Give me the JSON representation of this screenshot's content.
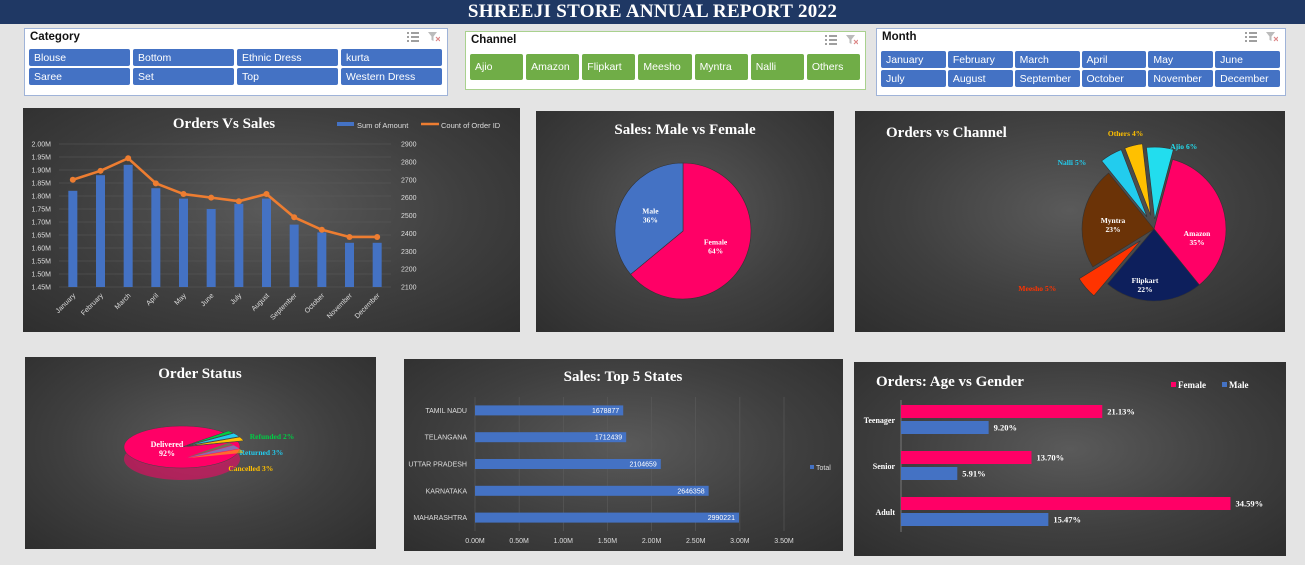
{
  "header": {
    "title": "SHREEJI STORE ANNUAL REPORT 2022"
  },
  "slicers": {
    "category": {
      "title": "Category",
      "items": [
        "Blouse",
        "Bottom",
        "Ethnic Dress",
        "kurta",
        "Saree",
        "Set",
        "Top",
        "Western Dress"
      ]
    },
    "channel": {
      "title": "Channel",
      "items": [
        "Ajio",
        "Amazon",
        "Flipkart",
        "Meesho",
        "Myntra",
        "Nalli",
        "Others"
      ]
    },
    "month": {
      "title": "Month",
      "items": [
        "January",
        "February",
        "March",
        "April",
        "May",
        "June",
        "July",
        "August",
        "September",
        "October",
        "November",
        "December"
      ]
    },
    "icons": {
      "multiselect": "multi-select-icon",
      "clear": "clear-filter-icon"
    }
  },
  "colors": {
    "title_bar": "#1f3864",
    "slicer_blue": "#4472c4",
    "slicer_green": "#70ad47",
    "bar_blue": "#4472c4",
    "line_orange": "#ed7d31",
    "female": "#ff0066",
    "male": "#4472c4"
  },
  "chart_data": [
    {
      "id": "orders_vs_sales",
      "type": "bar",
      "title": "Orders Vs Sales",
      "categories": [
        "January",
        "February",
        "March",
        "April",
        "May",
        "June",
        "July",
        "August",
        "September",
        "October",
        "November",
        "December"
      ],
      "series": [
        {
          "name": "Sum of Amount",
          "type": "bar",
          "axis": "left",
          "values": [
            1.82,
            1.88,
            1.92,
            1.83,
            1.79,
            1.75,
            1.77,
            1.79,
            1.69,
            1.66,
            1.62,
            1.62
          ]
        },
        {
          "name": "Count of Order ID",
          "type": "line",
          "axis": "right",
          "values": [
            2700,
            2750,
            2820,
            2680,
            2620,
            2600,
            2580,
            2620,
            2490,
            2420,
            2380,
            2380
          ]
        }
      ],
      "y_left": {
        "ticks": [
          "2.00M",
          "1.95M",
          "1.90M",
          "1.85M",
          "1.80M",
          "1.75M",
          "1.70M",
          "1.65M",
          "1.60M",
          "1.55M",
          "1.50M",
          "1.45M"
        ],
        "ylim": [
          1.45,
          2.0
        ]
      },
      "y_right": {
        "ticks": [
          "2900",
          "2800",
          "2700",
          "2600",
          "2500",
          "2400",
          "2300",
          "2200",
          "2100"
        ],
        "ylim": [
          2100,
          2900
        ]
      },
      "legend": "top-right"
    },
    {
      "id": "sales_gender",
      "type": "pie",
      "title": "Sales: Male vs Female",
      "slices": [
        {
          "label": "Female",
          "pct_label": "64%",
          "value": 64,
          "color": "#ff0066"
        },
        {
          "label": "Male",
          "pct_label": "36%",
          "value": 36,
          "color": "#4472c4"
        }
      ]
    },
    {
      "id": "orders_channel",
      "type": "pie",
      "title": "Orders vs Channel",
      "slices": [
        {
          "label": "Amazon",
          "pct_label": "35%",
          "value": 35,
          "color": "#ff0066"
        },
        {
          "label": "Flipkart",
          "pct_label": "22%",
          "value": 22,
          "color": "#0d1f5c"
        },
        {
          "label": "Meesho",
          "pct_label": "5%",
          "value": 5,
          "color": "#ff3300"
        },
        {
          "label": "Myntra",
          "pct_label": "23%",
          "value": 23,
          "color": "#6b3307"
        },
        {
          "label": "Nalli",
          "pct_label": "5%",
          "value": 5,
          "color": "#22ccee"
        },
        {
          "label": "Others",
          "pct_label": "4%",
          "value": 4,
          "color": "#ffc000"
        },
        {
          "label": "Ajio",
          "pct_label": "6%",
          "value": 6,
          "color": "#22ddee"
        }
      ]
    },
    {
      "id": "order_status",
      "type": "pie",
      "title": "Order Status",
      "slices": [
        {
          "label": "Delivered",
          "pct_label": "92%",
          "value": 92,
          "color": "#ff0066"
        },
        {
          "label": "Refunded",
          "pct_label": "2%",
          "value": 2,
          "color": "#00cc44"
        },
        {
          "label": "Returned",
          "pct_label": "3%",
          "value": 3,
          "color": "#22ccee"
        },
        {
          "label": "Cancelled",
          "pct_label": "3%",
          "value": 3,
          "color": "#ffc000"
        }
      ]
    },
    {
      "id": "top_states",
      "type": "bar",
      "orientation": "horizontal",
      "title": "Sales: Top 5 States",
      "categories": [
        "TAMIL NADU",
        "TELANGANA",
        "UTTAR PRADESH",
        "KARNATAKA",
        "MAHARASHTRA"
      ],
      "series": [
        {
          "name": "Total",
          "values": [
            1678877,
            1712439,
            2104659,
            2646358,
            2990221
          ]
        }
      ],
      "x_ticks": [
        "0.00M",
        "0.50M",
        "1.00M",
        "1.50M",
        "2.00M",
        "2.50M",
        "3.00M",
        "3.50M"
      ],
      "xlim": [
        0,
        3500000
      ],
      "legend": "right"
    },
    {
      "id": "age_gender",
      "type": "bar",
      "orientation": "horizontal",
      "title": "Orders: Age vs Gender",
      "categories": [
        "Teenager",
        "Senior",
        "Adult"
      ],
      "series": [
        {
          "name": "Female",
          "values": [
            21.13,
            13.7,
            34.59
          ],
          "labels": [
            "21.13%",
            "13.70%",
            "34.59%"
          ]
        },
        {
          "name": "Male",
          "values": [
            9.2,
            5.91,
            15.47
          ],
          "labels": [
            "9.20%",
            "5.91%",
            "15.47%"
          ]
        }
      ],
      "xlim": [
        0,
        40
      ],
      "legend": "top-right"
    }
  ]
}
